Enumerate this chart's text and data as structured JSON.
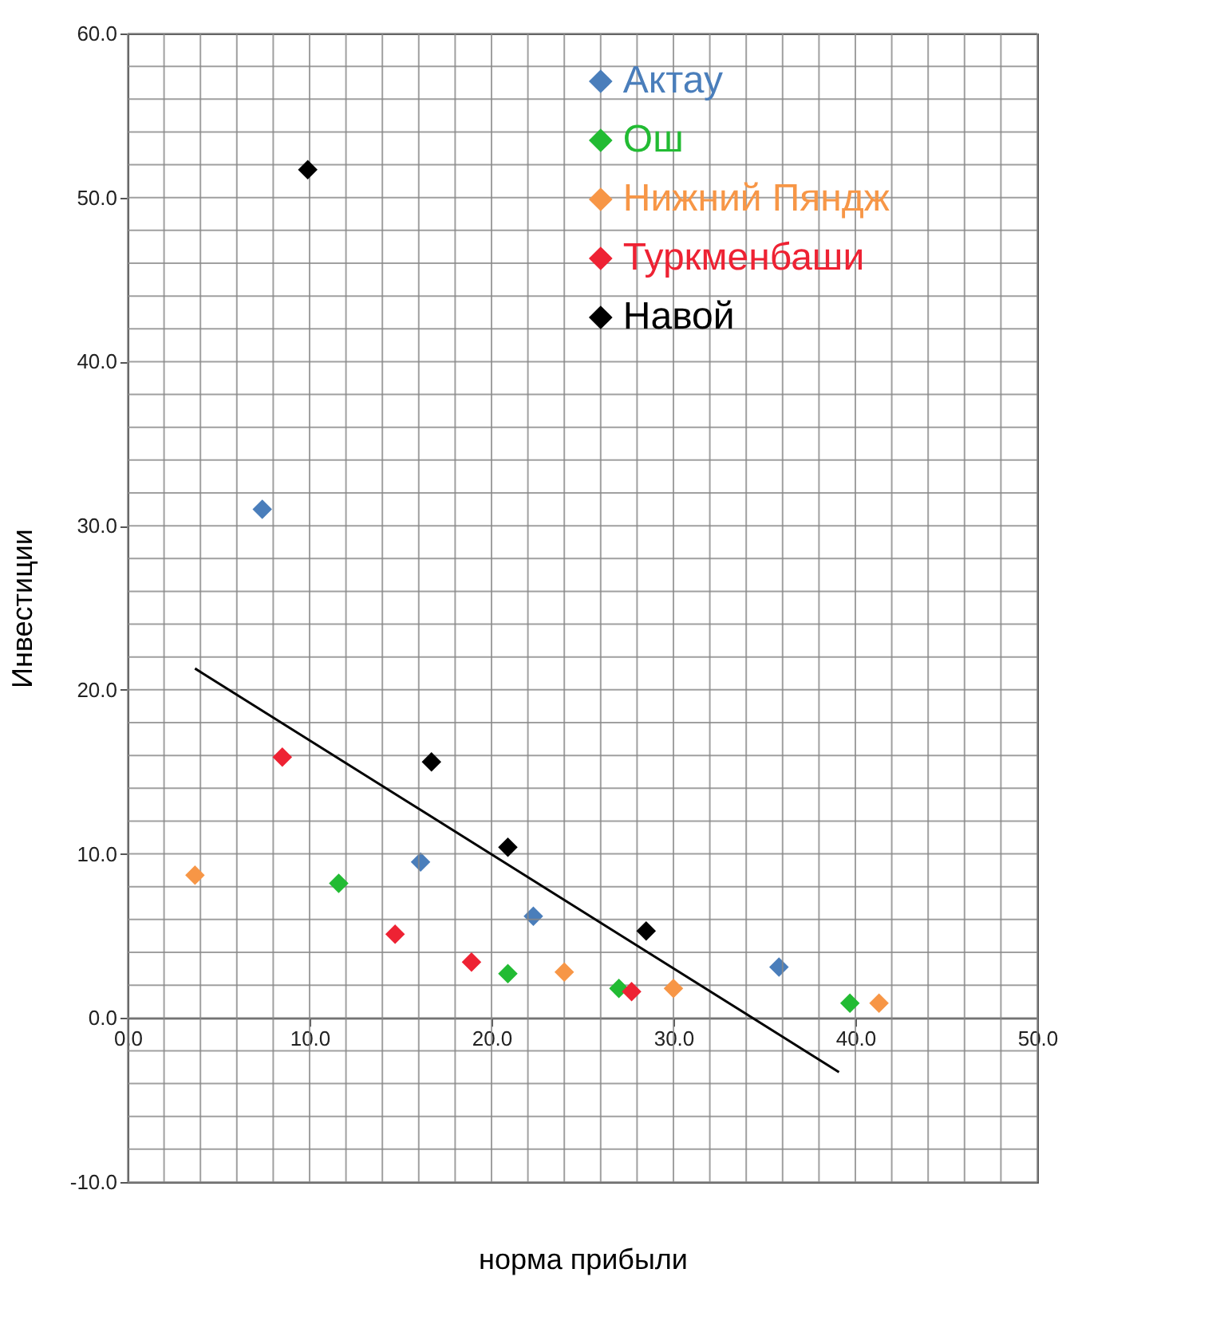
{
  "chart_data": {
    "type": "scatter",
    "xlabel": "норма прибыли",
    "ylabel": "Инвестиции",
    "xlim": [
      0,
      50
    ],
    "ylim": [
      -10,
      60
    ],
    "xticks": [
      {
        "value": 0,
        "label": "0.0"
      },
      {
        "value": 2,
        "label": null
      },
      {
        "value": 4,
        "label": null
      },
      {
        "value": 6,
        "label": null
      },
      {
        "value": 8,
        "label": null
      },
      {
        "value": 10,
        "label": "10.0"
      },
      {
        "value": 12,
        "label": null
      },
      {
        "value": 14,
        "label": null
      },
      {
        "value": 16,
        "label": null
      },
      {
        "value": 18,
        "label": null
      },
      {
        "value": 20,
        "label": "20.0"
      },
      {
        "value": 22,
        "label": null
      },
      {
        "value": 24,
        "label": null
      },
      {
        "value": 26,
        "label": null
      },
      {
        "value": 28,
        "label": null
      },
      {
        "value": 30,
        "label": "30.0"
      },
      {
        "value": 32,
        "label": null
      },
      {
        "value": 34,
        "label": null
      },
      {
        "value": 36,
        "label": null
      },
      {
        "value": 38,
        "label": null
      },
      {
        "value": 40,
        "label": "40.0"
      },
      {
        "value": 42,
        "label": null
      },
      {
        "value": 44,
        "label": null
      },
      {
        "value": 46,
        "label": null
      },
      {
        "value": 48,
        "label": null
      },
      {
        "value": 50,
        "label": "50.0"
      }
    ],
    "yticks": [
      {
        "value": -10,
        "label": "-10.0"
      },
      {
        "value": -8,
        "label": null
      },
      {
        "value": -6,
        "label": null
      },
      {
        "value": -4,
        "label": null
      },
      {
        "value": -2,
        "label": null
      },
      {
        "value": 0,
        "label": "0.0"
      },
      {
        "value": 2,
        "label": null
      },
      {
        "value": 4,
        "label": null
      },
      {
        "value": 6,
        "label": null
      },
      {
        "value": 8,
        "label": null
      },
      {
        "value": 10,
        "label": "10.0"
      },
      {
        "value": 12,
        "label": null
      },
      {
        "value": 14,
        "label": null
      },
      {
        "value": 16,
        "label": null
      },
      {
        "value": 18,
        "label": null
      },
      {
        "value": 20,
        "label": "20.0"
      },
      {
        "value": 22,
        "label": null
      },
      {
        "value": 24,
        "label": null
      },
      {
        "value": 26,
        "label": null
      },
      {
        "value": 28,
        "label": null
      },
      {
        "value": 30,
        "label": "30.0"
      },
      {
        "value": 32,
        "label": null
      },
      {
        "value": 34,
        "label": null
      },
      {
        "value": 36,
        "label": null
      },
      {
        "value": 38,
        "label": null
      },
      {
        "value": 40,
        "label": "40.0"
      },
      {
        "value": 42,
        "label": null
      },
      {
        "value": 44,
        "label": null
      },
      {
        "value": 46,
        "label": null
      },
      {
        "value": 48,
        "label": null
      },
      {
        "value": 50,
        "label": "50.0"
      },
      {
        "value": 52,
        "label": null
      },
      {
        "value": 54,
        "label": null
      },
      {
        "value": 56,
        "label": null
      },
      {
        "value": 58,
        "label": null
      },
      {
        "value": 60,
        "label": "60.0"
      }
    ],
    "grid": true,
    "legend": "top right",
    "marker": "diamond",
    "series": [
      {
        "name": "Актау",
        "color": "#4a7ebb",
        "x": [
          7.4,
          16.1,
          22.3,
          35.8
        ],
        "values": [
          31.0,
          9.5,
          6.2,
          3.1
        ]
      },
      {
        "name": "Ош",
        "color": "#22bb33",
        "x": [
          11.6,
          20.9,
          27.0,
          39.7
        ],
        "values": [
          8.2,
          2.7,
          1.8,
          0.9
        ]
      },
      {
        "name": "Нижний Пяндж",
        "color": "#f79646",
        "x": [
          3.7,
          24.0,
          30.0,
          41.3
        ],
        "values": [
          8.7,
          2.8,
          1.8,
          0.9
        ]
      },
      {
        "name": "Туркменбаши",
        "color": "#ee2233",
        "x": [
          8.5,
          14.7,
          18.9,
          27.7
        ],
        "values": [
          15.9,
          5.1,
          3.4,
          1.6
        ]
      },
      {
        "name": "Навой",
        "color": "#000000",
        "x": [
          9.9,
          16.7,
          20.9,
          28.5
        ],
        "values": [
          51.7,
          15.6,
          10.4,
          5.3
        ]
      },
      {
        "type": "line",
        "marker": "none",
        "color": "#000000",
        "x": [
          3.7,
          39.1
        ],
        "values": [
          21.3,
          -3.3
        ]
      }
    ]
  }
}
